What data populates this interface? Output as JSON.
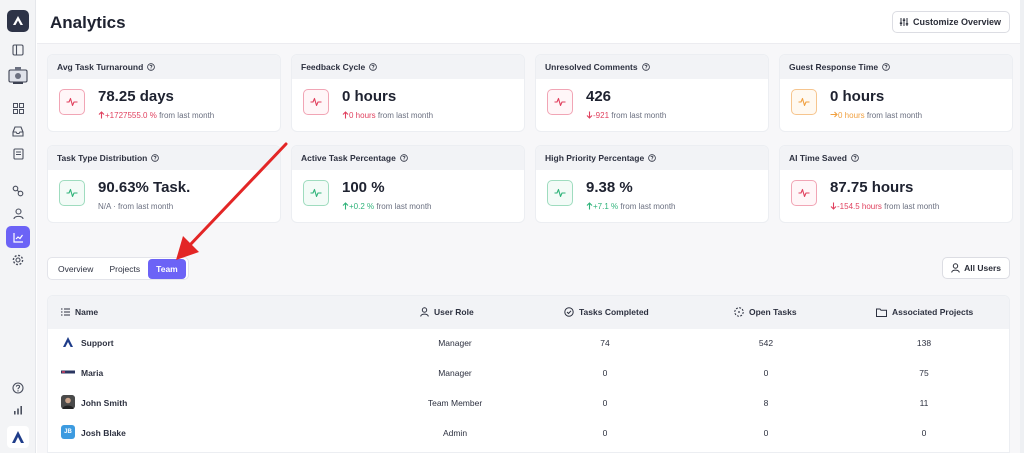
{
  "header": {
    "title": "Analytics",
    "customize_label": "Customize Overview"
  },
  "sidebar": {
    "items": [
      {
        "name": "panel-toggle-icon"
      },
      {
        "name": "workspace-icon"
      },
      {
        "name": "grid-icon"
      },
      {
        "name": "inbox-icon"
      },
      {
        "name": "document-icon"
      },
      {
        "name": "link-icon"
      },
      {
        "name": "user-icon"
      },
      {
        "name": "analytics-icon",
        "active": true
      },
      {
        "name": "settings-icon"
      },
      {
        "name": "help-icon"
      },
      {
        "name": "stats-icon"
      }
    ]
  },
  "metrics": [
    {
      "title": "Avg Task Turnaround",
      "value": "78.25 days",
      "change": "+1727555.0 %",
      "suffix": "from last month",
      "color": "red",
      "direction": "up"
    },
    {
      "title": "Feedback Cycle",
      "value": "0 hours",
      "change": "0 hours",
      "suffix": "from last month",
      "color": "red",
      "direction": "up"
    },
    {
      "title": "Unresolved Comments",
      "value": "426",
      "change": "-921",
      "suffix": "from last month",
      "color": "red",
      "direction": "down"
    },
    {
      "title": "Guest Response Time",
      "value": "0 hours",
      "change": "0 hours",
      "suffix": "from last month",
      "color": "orange",
      "direction": "right"
    },
    {
      "title": "Task Type Distribution",
      "value": "90.63% Task.",
      "change": "N/A",
      "suffix": "· from last month",
      "color": "green",
      "direction": "none"
    },
    {
      "title": "Active Task Percentage",
      "value": "100 %",
      "change": "+0.2 %",
      "suffix": "from last month",
      "color": "green",
      "direction": "up"
    },
    {
      "title": "High Priority Percentage",
      "value": "9.38 %",
      "change": "+7.1 %",
      "suffix": "from last month",
      "color": "green",
      "direction": "up"
    },
    {
      "title": "AI Time Saved",
      "value": "87.75 hours",
      "change": "-154.5 hours",
      "suffix": "from last month",
      "color": "red",
      "direction": "down"
    }
  ],
  "tabs": [
    {
      "label": "Overview",
      "active": false
    },
    {
      "label": "Projects",
      "active": false
    },
    {
      "label": "Team",
      "active": true
    }
  ],
  "filter": {
    "label": "All Users"
  },
  "table": {
    "columns": [
      "Name",
      "User Role",
      "Tasks Completed",
      "Open Tasks",
      "Associated Projects"
    ],
    "rows": [
      {
        "name": "Support",
        "role": "Manager",
        "completed": "74",
        "open": "542",
        "projects": "138",
        "avatar": "logo"
      },
      {
        "name": "Maria",
        "role": "Manager",
        "completed": "0",
        "open": "0",
        "projects": "75",
        "avatar": "mini-logo"
      },
      {
        "name": "John Smith",
        "role": "Team Member",
        "completed": "0",
        "open": "8",
        "projects": "11",
        "avatar": "photo"
      },
      {
        "name": "Josh Blake",
        "role": "Admin",
        "completed": "0",
        "open": "0",
        "projects": "0",
        "avatar": "JB"
      }
    ]
  },
  "colors": {
    "accent": "#6c63f6",
    "red": "#e0405e",
    "green": "#2fb37a",
    "orange": "#f0a040",
    "arrow": "#e32626"
  }
}
